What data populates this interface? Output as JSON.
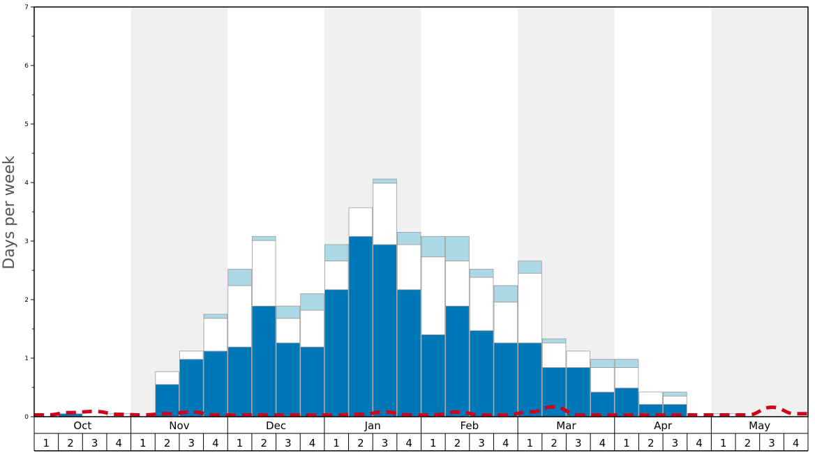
{
  "chart_data": {
    "type": "bar",
    "stacked": true,
    "ylabel": "Days per week",
    "ylim": [
      0,
      7
    ],
    "y_ticks": [
      "0",
      "1",
      "2",
      "3",
      "4",
      "5",
      "6",
      "7"
    ],
    "grid": false,
    "months": [
      "Oct",
      "Nov",
      "Dec",
      "Jan",
      "Feb",
      "Mar",
      "Apr",
      "May"
    ],
    "week_labels": [
      "1",
      "2",
      "3",
      "4"
    ],
    "colors": {
      "bottom": "#0077b6",
      "middle": "#ffffff",
      "top": "#add8e6",
      "line": "#d0021b",
      "band": "#f0f0f0",
      "bar_border": "#999999"
    },
    "categories": [
      "Oct 1",
      "Oct 2",
      "Oct 3",
      "Oct 4",
      "Nov 1",
      "Nov 2",
      "Nov 3",
      "Nov 4",
      "Dec 1",
      "Dec 2",
      "Dec 3",
      "Dec 4",
      "Jan 1",
      "Jan 2",
      "Jan 3",
      "Jan 4",
      "Feb 1",
      "Feb 2",
      "Feb 3",
      "Feb 4",
      "Mar 1",
      "Mar 2",
      "Mar 3",
      "Mar 4",
      "Apr 1",
      "Apr 2",
      "Apr 3",
      "Apr 4",
      "May 1",
      "May 2",
      "May 3",
      "May 4"
    ],
    "series": [
      {
        "role": "bottom",
        "values": [
          0,
          0.05,
          0,
          0,
          0,
          0.55,
          0.98,
          1.12,
          1.19,
          1.89,
          1.26,
          1.19,
          2.17,
          3.08,
          2.94,
          2.17,
          1.4,
          1.89,
          1.47,
          1.26,
          1.26,
          0.84,
          0.84,
          0.42,
          0.49,
          0.21,
          0.21,
          0,
          0,
          0,
          0,
          0
        ]
      },
      {
        "role": "middle",
        "values": [
          0,
          0,
          0,
          0.05,
          0,
          0.22,
          0.14,
          0.56,
          1.05,
          1.12,
          0.42,
          0.63,
          0.49,
          0.49,
          1.05,
          0.77,
          1.33,
          0.77,
          0.91,
          0.7,
          1.19,
          0.42,
          0.28,
          0.42,
          0.35,
          0.21,
          0.14,
          0,
          0.05,
          0,
          0,
          0
        ]
      },
      {
        "role": "top",
        "values": [
          0,
          0,
          0,
          0,
          0,
          0,
          0,
          0.07,
          0.28,
          0.07,
          0.21,
          0.28,
          0.28,
          0,
          0.07,
          0.21,
          0.35,
          0.42,
          0.14,
          0.28,
          0.21,
          0.07,
          0,
          0.14,
          0.14,
          0,
          0.07,
          0,
          0,
          0,
          0,
          0
        ]
      },
      {
        "role": "line",
        "values": [
          0.03,
          0.07,
          0.09,
          0.04,
          0.03,
          0.05,
          0.08,
          0.03,
          0.03,
          0.03,
          0.03,
          0.03,
          0.03,
          0.04,
          0.08,
          0.03,
          0.03,
          0.08,
          0.03,
          0.03,
          0.08,
          0.17,
          0.03,
          0.03,
          0.03,
          0.03,
          0.03,
          0.03,
          0.03,
          0.03,
          0.16,
          0.05
        ]
      }
    ]
  }
}
